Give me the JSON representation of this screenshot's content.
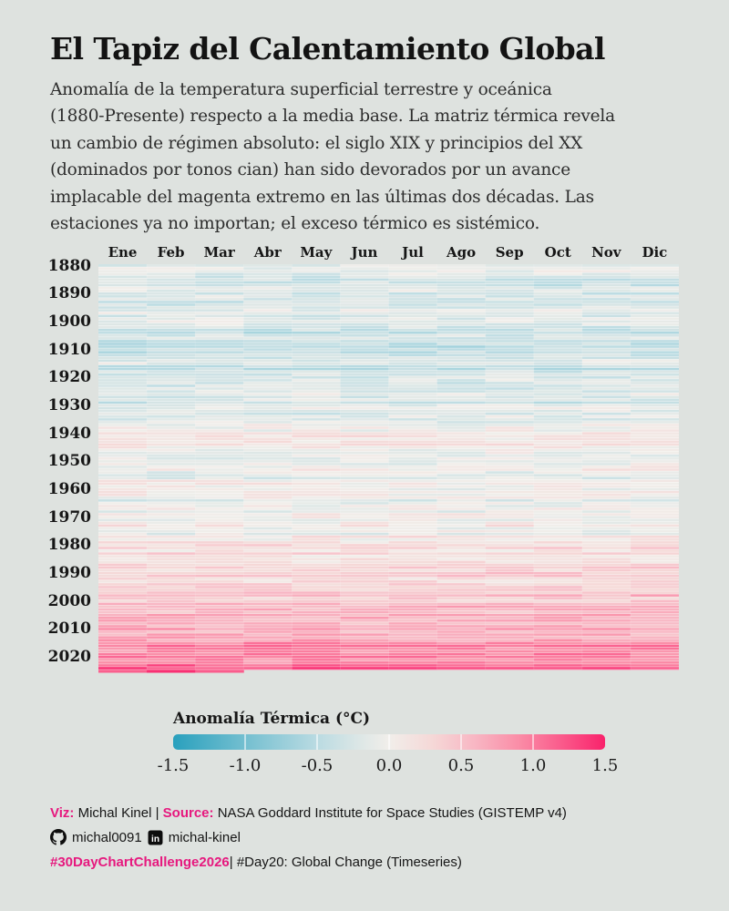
{
  "page": {
    "background": "#dee2df",
    "accent_color": "#e6187e",
    "text_color": "#161616"
  },
  "header": {
    "title": "El Tapiz del Calentamiento Global",
    "subtitle_lines": [
      "Anomalía de la temperatura superficial terrestre y oceánica",
      "(1880-Presente) respecto a la media base. La matriz térmica revela",
      "un cambio de régimen absoluto: el siglo XIX y principios del XX",
      "(dominados por tonos cian) han sido devorados por un avance",
      "implacable del magenta extremo en las últimas dos décadas. Las",
      "estaciones ya no importan; el exceso térmico es sistémico."
    ]
  },
  "legend": {
    "title": "Anomalía Térmica (°C)",
    "ticks": [
      "-1.5",
      "-1.0",
      "-0.5",
      "0.0",
      "0.5",
      "1.0",
      "1.5"
    ]
  },
  "chart_data": {
    "type": "heatmap",
    "title": "El Tapiz del Calentamiento Global",
    "unit": "°C",
    "x": [
      "Ene",
      "Feb",
      "Mar",
      "Abr",
      "May",
      "Jun",
      "Jul",
      "Ago",
      "Sep",
      "Oct",
      "Nov",
      "Dic"
    ],
    "year_start": 1880,
    "year_tick_labels": [
      1880,
      1890,
      1900,
      1910,
      1920,
      1930,
      1940,
      1950,
      1960,
      1970,
      1980,
      1990,
      2000,
      2010,
      2020
    ],
    "annual_anomalies": [
      -0.16,
      -0.08,
      -0.1,
      -0.17,
      -0.28,
      -0.33,
      -0.31,
      -0.36,
      -0.17,
      -0.1,
      -0.35,
      -0.22,
      -0.27,
      -0.31,
      -0.3,
      -0.23,
      -0.11,
      -0.11,
      -0.27,
      -0.17,
      -0.08,
      -0.15,
      -0.28,
      -0.37,
      -0.47,
      -0.26,
      -0.22,
      -0.39,
      -0.43,
      -0.48,
      -0.43,
      -0.44,
      -0.36,
      -0.34,
      -0.15,
      -0.14,
      -0.36,
      -0.46,
      -0.3,
      -0.28,
      -0.27,
      -0.19,
      -0.28,
      -0.26,
      -0.27,
      -0.22,
      -0.1,
      -0.22,
      -0.2,
      -0.36,
      -0.16,
      -0.09,
      -0.16,
      -0.29,
      -0.12,
      -0.2,
      -0.15,
      -0.03,
      0.0,
      -0.02,
      0.13,
      0.18,
      0.07,
      0.09,
      0.2,
      0.09,
      -0.07,
      -0.03,
      -0.11,
      -0.11,
      -0.17,
      -0.07,
      0.01,
      0.08,
      -0.13,
      -0.14,
      -0.19,
      0.05,
      0.06,
      0.03,
      -0.03,
      0.06,
      0.03,
      0.05,
      -0.2,
      -0.11,
      -0.06,
      -0.02,
      -0.08,
      0.05,
      0.03,
      -0.08,
      0.01,
      0.16,
      -0.07,
      -0.01,
      -0.1,
      0.18,
      0.07,
      0.16,
      0.26,
      0.32,
      0.14,
      0.31,
      0.16,
      0.12,
      0.18,
      0.33,
      0.41,
      0.27,
      0.45,
      0.41,
      0.22,
      0.23,
      0.31,
      0.45,
      0.33,
      0.46,
      0.61,
      0.38,
      0.39,
      0.54,
      0.63,
      0.62,
      0.53,
      0.68,
      0.64,
      0.67,
      0.55,
      0.66,
      0.72,
      0.61,
      0.65,
      0.68,
      0.75,
      0.9,
      1.02,
      0.92,
      0.85,
      0.98,
      1.02,
      0.85,
      0.89,
      1.17,
      1.28,
      1.35
    ],
    "monthly_variation_amplitude": 0.19,
    "partial_last_year": {
      "year": 2025,
      "months_with_data": 3
    },
    "value_domain": [
      -1.5,
      1.5
    ],
    "colormap_stops": [
      {
        "t": -1.5,
        "c": "#29a0bd"
      },
      {
        "t": -1.0,
        "c": "#74bfd0"
      },
      {
        "t": -0.5,
        "c": "#badbe2"
      },
      {
        "t": -0.2,
        "c": "#dde7e6"
      },
      {
        "t": 0.0,
        "c": "#f1eeea"
      },
      {
        "t": 0.3,
        "c": "#f5d8d7"
      },
      {
        "t": 0.6,
        "c": "#f8b6c3"
      },
      {
        "t": 0.9,
        "c": "#fa8da7"
      },
      {
        "t": 1.2,
        "c": "#fa5a8b"
      },
      {
        "t": 1.5,
        "c": "#f9226b"
      }
    ]
  },
  "footer": {
    "viz_label": "Viz:",
    "viz_name": " Michal Kinel | ",
    "source_label": "Source:",
    "source_name": " NASA Goddard Institute for Space Studies (GISTEMP v4)",
    "github_handle": "michal0091",
    "linkedin_handle": "michal-kinel",
    "hashtag": "#30DayChartChallenge2026",
    "hashtag_rest": "| #Day20: Global Change (Timeseries)"
  }
}
